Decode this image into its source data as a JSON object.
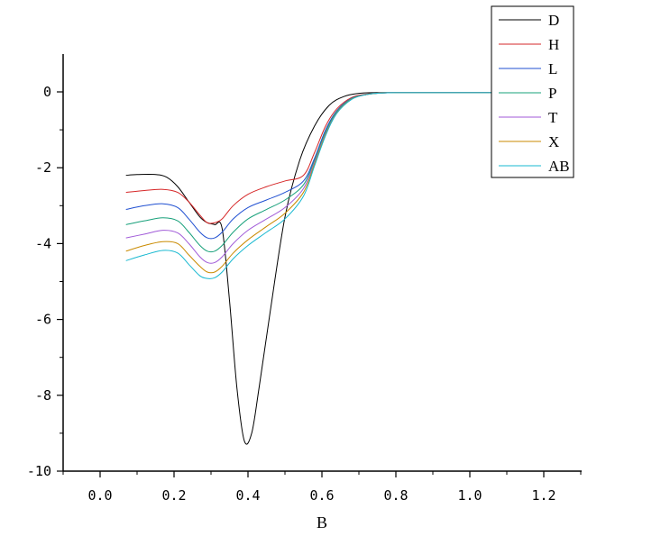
{
  "chart_data": {
    "type": "line",
    "title": "",
    "xlabel": "B",
    "ylabel": "",
    "xlim": [
      -0.1,
      1.3
    ],
    "ylim": [
      -10,
      1
    ],
    "x_ticks": [
      0.0,
      0.2,
      0.4,
      0.6,
      0.8,
      1.0,
      1.2
    ],
    "x_tick_labels": [
      "0.0",
      "0.2",
      "0.4",
      "0.6",
      "0.8",
      "1.0",
      "1.2"
    ],
    "y_ticks": [
      0,
      -2,
      -4,
      -6,
      -8,
      -10
    ],
    "y_tick_labels": [
      "0",
      "-2",
      "-4",
      "-6",
      "-8",
      "-10"
    ],
    "grid": false,
    "legend_position": "top-right",
    "series": [
      {
        "name": "D",
        "color": "#000000",
        "x": [
          0.07,
          0.1,
          0.15,
          0.18,
          0.21,
          0.24,
          0.27,
          0.29,
          0.31,
          0.33,
          0.35,
          0.37,
          0.39,
          0.41,
          0.43,
          0.46,
          0.5,
          0.54,
          0.58,
          0.62,
          0.66,
          0.7,
          0.74,
          0.8,
          0.9,
          1.0,
          1.1
        ],
        "y": [
          -2.2,
          -2.18,
          -2.18,
          -2.25,
          -2.5,
          -2.9,
          -3.3,
          -3.45,
          -3.5,
          -3.6,
          -5.5,
          -7.8,
          -9.2,
          -9.0,
          -7.8,
          -5.8,
          -3.3,
          -1.8,
          -0.9,
          -0.35,
          -0.12,
          -0.04,
          -0.02,
          -0.02,
          -0.02,
          -0.02,
          -0.02
        ]
      },
      {
        "name": "H",
        "color": "#d62728",
        "x": [
          0.07,
          0.12,
          0.17,
          0.21,
          0.24,
          0.27,
          0.29,
          0.31,
          0.33,
          0.36,
          0.4,
          0.45,
          0.5,
          0.55,
          0.58,
          0.61,
          0.64,
          0.68,
          0.72,
          0.76,
          0.8,
          0.9,
          1.0,
          1.1
        ],
        "y": [
          -2.65,
          -2.6,
          -2.57,
          -2.65,
          -2.9,
          -3.25,
          -3.45,
          -3.45,
          -3.35,
          -3.0,
          -2.7,
          -2.5,
          -2.35,
          -2.2,
          -1.6,
          -0.9,
          -0.45,
          -0.15,
          -0.06,
          -0.03,
          -0.02,
          -0.02,
          -0.02,
          -0.02
        ]
      },
      {
        "name": "L",
        "color": "#1f4fd1",
        "x": [
          0.07,
          0.12,
          0.17,
          0.21,
          0.24,
          0.27,
          0.29,
          0.31,
          0.33,
          0.36,
          0.4,
          0.45,
          0.5,
          0.55,
          0.58,
          0.61,
          0.64,
          0.68,
          0.72,
          0.76,
          0.8,
          0.9,
          1.0,
          1.1
        ],
        "y": [
          -3.1,
          -3.0,
          -2.95,
          -3.05,
          -3.35,
          -3.7,
          -3.85,
          -3.85,
          -3.7,
          -3.35,
          -3.05,
          -2.85,
          -2.65,
          -2.35,
          -1.75,
          -1.0,
          -0.5,
          -0.17,
          -0.07,
          -0.03,
          -0.02,
          -0.02,
          -0.02,
          -0.02
        ]
      },
      {
        "name": "P",
        "color": "#17a07a",
        "x": [
          0.07,
          0.12,
          0.17,
          0.21,
          0.24,
          0.27,
          0.29,
          0.31,
          0.33,
          0.36,
          0.4,
          0.45,
          0.5,
          0.55,
          0.58,
          0.61,
          0.64,
          0.68,
          0.72,
          0.76,
          0.8,
          0.9,
          1.0,
          1.1
        ],
        "y": [
          -3.5,
          -3.4,
          -3.32,
          -3.4,
          -3.7,
          -4.05,
          -4.2,
          -4.2,
          -4.05,
          -3.7,
          -3.35,
          -3.1,
          -2.85,
          -2.45,
          -1.8,
          -1.05,
          -0.52,
          -0.18,
          -0.07,
          -0.03,
          -0.02,
          -0.02,
          -0.02,
          -0.02
        ]
      },
      {
        "name": "T",
        "color": "#a05ad8",
        "x": [
          0.07,
          0.12,
          0.17,
          0.21,
          0.24,
          0.27,
          0.29,
          0.31,
          0.33,
          0.36,
          0.4,
          0.45,
          0.5,
          0.55,
          0.58,
          0.61,
          0.64,
          0.68,
          0.72,
          0.76,
          0.8,
          0.9,
          1.0,
          1.1
        ],
        "y": [
          -3.85,
          -3.75,
          -3.65,
          -3.72,
          -4.0,
          -4.35,
          -4.5,
          -4.5,
          -4.35,
          -4.0,
          -3.65,
          -3.35,
          -3.05,
          -2.55,
          -1.85,
          -1.1,
          -0.55,
          -0.19,
          -0.07,
          -0.03,
          -0.02,
          -0.02,
          -0.02,
          -0.02
        ]
      },
      {
        "name": "X",
        "color": "#c98a00",
        "x": [
          0.07,
          0.12,
          0.17,
          0.21,
          0.24,
          0.27,
          0.29,
          0.31,
          0.33,
          0.36,
          0.4,
          0.45,
          0.5,
          0.55,
          0.58,
          0.61,
          0.64,
          0.68,
          0.72,
          0.76,
          0.8,
          0.9,
          1.0,
          1.1
        ],
        "y": [
          -4.2,
          -4.05,
          -3.95,
          -4.0,
          -4.3,
          -4.6,
          -4.75,
          -4.75,
          -4.6,
          -4.25,
          -3.9,
          -3.55,
          -3.2,
          -2.65,
          -1.9,
          -1.12,
          -0.56,
          -0.19,
          -0.07,
          -0.03,
          -0.02,
          -0.02,
          -0.02,
          -0.02
        ]
      },
      {
        "name": "AB",
        "color": "#17b8d0",
        "x": [
          0.07,
          0.12,
          0.17,
          0.21,
          0.24,
          0.27,
          0.29,
          0.31,
          0.33,
          0.36,
          0.4,
          0.45,
          0.5,
          0.55,
          0.58,
          0.61,
          0.64,
          0.68,
          0.72,
          0.76,
          0.8,
          0.9,
          1.0,
          1.1
        ],
        "y": [
          -4.45,
          -4.3,
          -4.18,
          -4.25,
          -4.55,
          -4.85,
          -4.92,
          -4.9,
          -4.75,
          -4.4,
          -4.05,
          -3.7,
          -3.35,
          -2.75,
          -1.95,
          -1.15,
          -0.57,
          -0.2,
          -0.07,
          -0.03,
          -0.02,
          -0.02,
          -0.02,
          -0.02
        ]
      }
    ]
  }
}
